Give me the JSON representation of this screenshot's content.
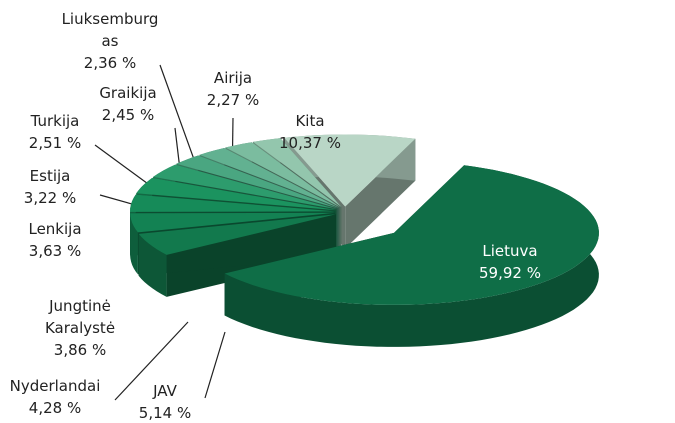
{
  "chart_data": {
    "type": "pie",
    "categories": [
      "Lietuva",
      "JAV",
      "Nyderlandai",
      "Jungtinė Karalystė",
      "Lenkija",
      "Estija",
      "Turkija",
      "Graikija",
      "Liuksemburgas",
      "Airija",
      "Kita"
    ],
    "values": [
      59.92,
      5.14,
      4.28,
      3.86,
      3.63,
      3.22,
      2.51,
      2.45,
      2.36,
      2.27,
      10.37
    ],
    "value_labels": [
      "59,92 %",
      "5,14 %",
      "4,28 %",
      "3,86 %",
      "3,63 %",
      "3,22 %",
      "2,51 %",
      "2,45 %",
      "2,36 %",
      "2,27 %",
      "10,37 %"
    ],
    "colors": [
      "#0f6e47",
      "#12794d",
      "#138253",
      "#168b59",
      "#1b935f",
      "#2d9c6d",
      "#4aa681",
      "#62b191",
      "#7bbc9f",
      "#93c6ad",
      "#b9d6c6"
    ]
  }
}
